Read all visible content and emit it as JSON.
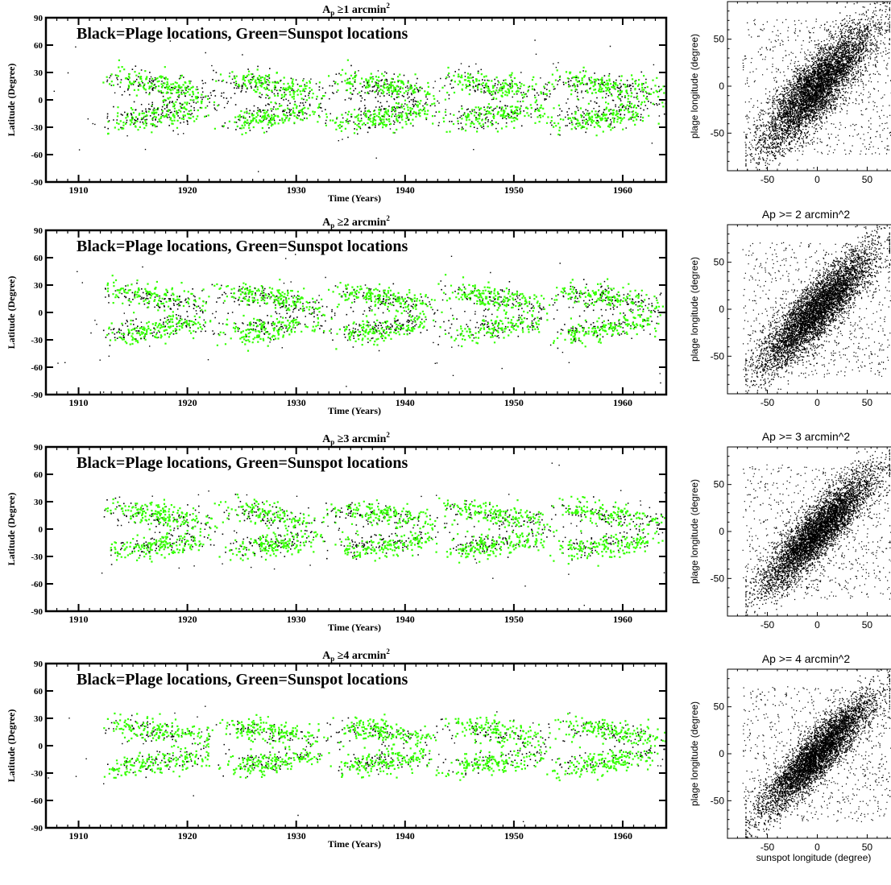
{
  "colors": {
    "plage": "#000000",
    "sunspot": "#33ff00",
    "frame": "#000000",
    "background": "#ffffff"
  },
  "chart_data": [
    {
      "type": "scatter",
      "title_prefix": "A",
      "title_sub": "p",
      "title_suffix": " ≥1 arcmin",
      "title_sup": "2",
      "legend_text": "Black=Plage locations,  Green=Sunspot locations",
      "xlabel": "Time (Years)",
      "ylabel": "Latitude (Degree)",
      "xlim": [
        1907,
        1964
      ],
      "ylim": [
        -90,
        90
      ],
      "xticks": [
        1910,
        1920,
        1930,
        1940,
        1950,
        1960
      ],
      "yticks": [
        90,
        60,
        30,
        0,
        -30,
        -60,
        -90
      ],
      "grid": false,
      "cycle_minima": [
        1913.6,
        1923.6,
        1933.8,
        1944.2,
        1954.3,
        1964.9
      ],
      "series": [
        {
          "name": "Plage locations",
          "color": "#000000",
          "spread_latitude_deg": 14
        },
        {
          "name": "Sunspot locations",
          "color": "#33ff00",
          "spread_latitude_deg": 10
        }
      ]
    },
    {
      "type": "scatter",
      "title_prefix": "A",
      "title_sub": "p",
      "title_suffix": " ≥2 arcmin",
      "title_sup": "2",
      "legend_text": "Black=Plage locations,  Green=Sunspot locations",
      "xlabel": "Time (Years)",
      "ylabel": "Latitude (Degree)",
      "xlim": [
        1907,
        1964
      ],
      "ylim": [
        -90,
        90
      ],
      "xticks": [
        1910,
        1920,
        1930,
        1940,
        1950,
        1960
      ],
      "yticks": [
        90,
        60,
        30,
        0,
        -30,
        -60,
        -90
      ],
      "grid": false,
      "cycle_minima": [
        1913.6,
        1923.6,
        1933.8,
        1944.2,
        1954.3,
        1964.9
      ],
      "series": [
        {
          "name": "Plage locations",
          "color": "#000000",
          "spread_latitude_deg": 12
        },
        {
          "name": "Sunspot locations",
          "color": "#33ff00",
          "spread_latitude_deg": 10
        }
      ]
    },
    {
      "type": "scatter",
      "title_prefix": "A",
      "title_sub": "p",
      "title_suffix": " ≥3 arcmin",
      "title_sup": "2",
      "legend_text": "Black=Plage locations,  Green=Sunspot locations",
      "xlabel": "Time (Years)",
      "ylabel": "Latitude (Degree)",
      "xlim": [
        1907,
        1964
      ],
      "ylim": [
        -90,
        90
      ],
      "xticks": [
        1910,
        1920,
        1930,
        1940,
        1950,
        1960
      ],
      "yticks": [
        90,
        60,
        30,
        0,
        -30,
        -60,
        -90
      ],
      "grid": false,
      "cycle_minima": [
        1913.6,
        1923.6,
        1933.8,
        1944.2,
        1954.3,
        1964.9
      ],
      "series": [
        {
          "name": "Plage locations",
          "color": "#000000",
          "spread_latitude_deg": 11
        },
        {
          "name": "Sunspot locations",
          "color": "#33ff00",
          "spread_latitude_deg": 10
        }
      ]
    },
    {
      "type": "scatter",
      "title_prefix": "A",
      "title_sub": "p",
      "title_suffix": " ≥4 arcmin",
      "title_sup": "2",
      "legend_text": "Black=Plage locations,  Green=Sunspot locations",
      "xlabel": "Time (Years)",
      "ylabel": "Latitude (Degree)",
      "xlim": [
        1907,
        1964
      ],
      "ylim": [
        -90,
        90
      ],
      "xticks": [
        1910,
        1920,
        1930,
        1940,
        1950,
        1960
      ],
      "yticks": [
        90,
        60,
        30,
        0,
        -30,
        -60,
        -90
      ],
      "grid": false,
      "cycle_minima": [
        1913.6,
        1923.6,
        1933.8,
        1944.2,
        1954.3,
        1964.9
      ],
      "series": [
        {
          "name": "Plage locations",
          "color": "#000000",
          "spread_latitude_deg": 10
        },
        {
          "name": "Sunspot locations",
          "color": "#33ff00",
          "spread_latitude_deg": 10
        }
      ]
    },
    {
      "type": "scatter",
      "title": "",
      "xlabel": "",
      "ylabel": "plage longitude (degree)",
      "xlim": [
        -90,
        90
      ],
      "ylim": [
        -90,
        90
      ],
      "xticks": [
        -50,
        0,
        50
      ],
      "yticks": [
        50,
        0,
        -50
      ],
      "grid": false,
      "correlation_slope": 1,
      "scatter_about_diagonal_deg": 18
    },
    {
      "type": "scatter",
      "title": "Ap >= 2 arcmin^2",
      "xlabel": "",
      "ylabel": "plage longitude (degree)",
      "xlim": [
        -90,
        90
      ],
      "ylim": [
        -90,
        90
      ],
      "xticks": [
        -50,
        0,
        50
      ],
      "yticks": [
        50,
        0,
        -50
      ],
      "grid": false,
      "correlation_slope": 1,
      "scatter_about_diagonal_deg": 16
    },
    {
      "type": "scatter",
      "title": "Ap >= 3 arcmin^2",
      "xlabel": "",
      "ylabel": "plage longitude (degree)",
      "xlim": [
        -90,
        90
      ],
      "ylim": [
        -90,
        90
      ],
      "xticks": [
        -50,
        0,
        50
      ],
      "yticks": [
        50,
        0,
        -50
      ],
      "grid": false,
      "correlation_slope": 1,
      "scatter_about_diagonal_deg": 15
    },
    {
      "type": "scatter",
      "title": "Ap >= 4 arcmin^2",
      "xlabel": "sunspot longitude (degree)",
      "ylabel": "plage longitude (degree)",
      "xlim": [
        -90,
        90
      ],
      "ylim": [
        -90,
        90
      ],
      "xticks": [
        -50,
        0,
        50
      ],
      "yticks": [
        50,
        0,
        -50
      ],
      "grid": false,
      "correlation_slope": 1,
      "scatter_about_diagonal_deg": 14
    }
  ]
}
